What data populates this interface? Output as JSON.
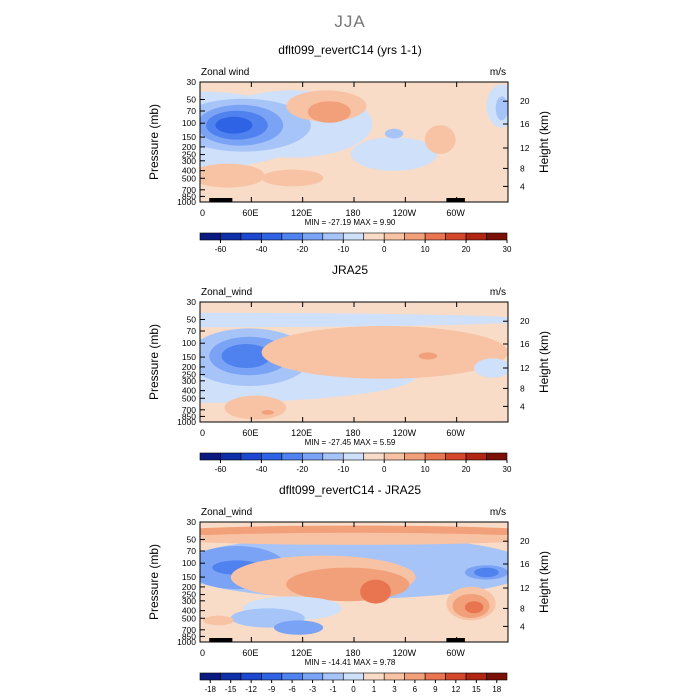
{
  "page": {
    "title": "JJA"
  },
  "chart_data": [
    {
      "type": "heatmap",
      "title": "dflt099_revertC14 (yrs 1-1)",
      "variable": "Zonal wind",
      "units": "m/s",
      "ylabel": "Pressure (mb)",
      "ylabel_right": "Height (km)",
      "xticks": [
        "0",
        "60E",
        "120E",
        "180",
        "120W",
        "60W"
      ],
      "yticks": [
        "30",
        "50",
        "70",
        "100",
        "150",
        "200",
        "250",
        "300",
        "400",
        "500",
        "700",
        "850",
        "1000"
      ],
      "height_ticks": [
        "20",
        "16",
        "12",
        "8",
        "4"
      ],
      "stats": "MIN = -27.19   MAX =    9.90",
      "colorbar_labels": [
        "-60",
        "-40",
        "-20",
        "-10",
        "0",
        "10",
        "20",
        "30"
      ],
      "colorbar_colors": [
        "#0a1a80",
        "#0f2fa8",
        "#1b48cf",
        "#2e63e6",
        "#4f81ef",
        "#7aa3f5",
        "#a7c4f8",
        "#cfe0fb",
        "#f8dcc8",
        "#f7c3a4",
        "#f2a07a",
        "#e87450",
        "#d4472b",
        "#b02612",
        "#7a1006"
      ]
    },
    {
      "type": "heatmap",
      "title": "JRA25",
      "variable": "Zonal_wind",
      "units": "m/s",
      "ylabel": "Pressure (mb)",
      "ylabel_right": "Height (km)",
      "xticks": [
        "0",
        "60E",
        "120E",
        "180",
        "120W",
        "60W"
      ],
      "yticks": [
        "30",
        "50",
        "70",
        "100",
        "150",
        "200",
        "250",
        "300",
        "400",
        "500",
        "700",
        "850",
        "1000"
      ],
      "height_ticks": [
        "20",
        "16",
        "12",
        "8",
        "4"
      ],
      "stats": "MIN = -27.45   MAX =    5.59",
      "colorbar_labels": [
        "-60",
        "-40",
        "-20",
        "-10",
        "0",
        "10",
        "20",
        "30"
      ],
      "colorbar_colors": [
        "#0a1a80",
        "#0f2fa8",
        "#1b48cf",
        "#2e63e6",
        "#4f81ef",
        "#7aa3f5",
        "#a7c4f8",
        "#cfe0fb",
        "#f8dcc8",
        "#f7c3a4",
        "#f2a07a",
        "#e87450",
        "#d4472b",
        "#b02612",
        "#7a1006"
      ]
    },
    {
      "type": "heatmap",
      "title": "dflt099_revertC14 - JRA25",
      "variable": "Zonal_wind",
      "units": "m/s",
      "ylabel": "Pressure (mb)",
      "ylabel_right": "Height (km)",
      "xticks": [
        "0",
        "60E",
        "120E",
        "180",
        "120W",
        "60W"
      ],
      "yticks": [
        "30",
        "50",
        "70",
        "100",
        "150",
        "200",
        "250",
        "300",
        "400",
        "500",
        "700",
        "850",
        "1000"
      ],
      "height_ticks": [
        "20",
        "16",
        "12",
        "8",
        "4"
      ],
      "stats": "MIN = -14.41   MAX =    9.78",
      "colorbar_labels": [
        "-18",
        "-15",
        "-12",
        "-9",
        "-6",
        "-3",
        "-1",
        "0",
        "1",
        "3",
        "6",
        "9",
        "12",
        "15",
        "18"
      ],
      "colorbar_colors": [
        "#0a1a80",
        "#0f2fa8",
        "#1b48cf",
        "#2e63e6",
        "#4f81ef",
        "#7aa3f5",
        "#a7c4f8",
        "#cfe0fb",
        "#f8dcc8",
        "#f7c3a4",
        "#f2a07a",
        "#e87450",
        "#d4472b",
        "#b02612",
        "#7a1006"
      ]
    }
  ]
}
